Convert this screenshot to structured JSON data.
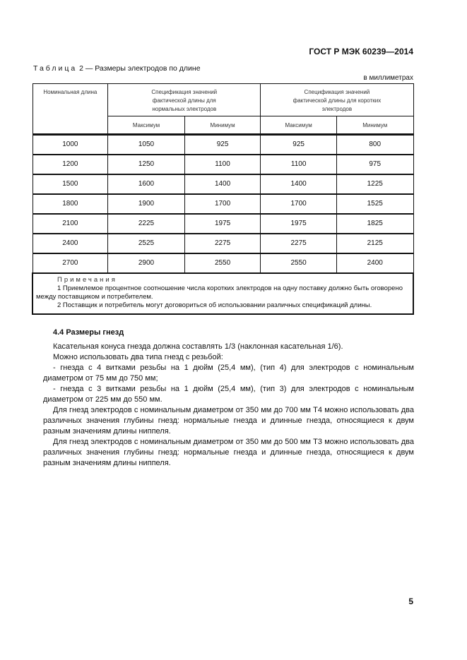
{
  "header": "ГОСТ Р МЭК 60239—2014",
  "caption": {
    "label": "Таблица",
    "rest": " 2 — Размеры электродов по длине"
  },
  "units": "в миллиметрах",
  "table": {
    "col_nominal": "Номинальная длина",
    "group_normal": "Спецификация значений фактической длины для нормальных электродов",
    "group_short": "Спецификация значений фактической длины для коротких электродов",
    "sub": [
      "Максимум",
      "Минимум",
      "Максимум",
      "Минимум"
    ],
    "rows": [
      [
        "1000",
        "1050",
        "925",
        "925",
        "800"
      ],
      [
        "1200",
        "1250",
        "1100",
        "1100",
        "975"
      ],
      [
        "1500",
        "1600",
        "1400",
        "1400",
        "1225"
      ],
      [
        "1800",
        "1900",
        "1700",
        "1700",
        "1525"
      ],
      [
        "2100",
        "2225",
        "1975",
        "1975",
        "1825"
      ],
      [
        "2400",
        "2525",
        "2275",
        "2275",
        "2125"
      ],
      [
        "2700",
        "2900",
        "2550",
        "2550",
        "2400"
      ]
    ],
    "notes_title": "Примечания",
    "notes": [
      "1 Приемлемое процентное соотношение числа коротких электродов на одну поставку должно быть оговорено между поставщиком и потребителем.",
      "2 Поставщик и потребитель могут договориться об использовании различных спецификаций длины."
    ]
  },
  "section": {
    "title": "4.4 Размеры гнезд",
    "paragraphs": [
      "Касательная конуса гнезда должна составлять 1/3 (наклонная касательная 1/6).",
      "Можно использовать два типа гнезд с резьбой:",
      "- гнезда с 4 витками резьбы на 1 дюйм (25,4 мм), (тип 4) для электродов с номинальным диаметром от 75 мм до 750 мм;",
      "- гнезда с 3 витками резьбы на 1 дюйм (25,4 мм), (тип 3) для электродов с номинальным диаметром от 225 мм до 550 мм.",
      "Для гнезд электродов с номинальным диаметром от 350 мм до 700 мм Т4 можно использовать два различных значения глубины гнезд: нормальные гнезда и длинные гнезда, относящиеся к двум разным значениям длины ниппеля.",
      "Для гнезд электродов с номинальным диаметром от 350 мм до 500 мм Т3 можно использовать два различных значения глубины гнезд: нормальные гнезда и длинные гнезда, относящиеся к двум разным значениям длины ниппеля."
    ]
  },
  "page_number": "5"
}
